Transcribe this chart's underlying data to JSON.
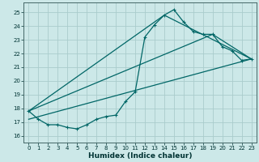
{
  "title": "",
  "xlabel": "Humidex (Indice chaleur)",
  "ylabel": "",
  "background_color": "#cce8e8",
  "grid_color": "#aacccc",
  "line_color": "#006666",
  "xlim": [
    -0.5,
    23.5
  ],
  "ylim": [
    15.5,
    25.7
  ],
  "yticks": [
    16,
    17,
    18,
    19,
    20,
    21,
    22,
    23,
    24,
    25
  ],
  "xticks": [
    0,
    1,
    2,
    3,
    4,
    5,
    6,
    7,
    8,
    9,
    10,
    11,
    12,
    13,
    14,
    15,
    16,
    17,
    18,
    19,
    20,
    21,
    22,
    23
  ],
  "series1_x": [
    0,
    1,
    2,
    3,
    4,
    5,
    6,
    7,
    8,
    9,
    10,
    11,
    12,
    13,
    14,
    15,
    16,
    17,
    18,
    19,
    20,
    21,
    22,
    23
  ],
  "series1_y": [
    17.8,
    17.2,
    16.8,
    16.8,
    16.6,
    16.5,
    16.8,
    17.2,
    17.4,
    17.5,
    18.5,
    19.2,
    23.2,
    24.1,
    24.8,
    25.2,
    24.3,
    23.6,
    23.4,
    23.4,
    22.5,
    22.2,
    21.5,
    21.6
  ],
  "series2_x": [
    0,
    14,
    23
  ],
  "series2_y": [
    17.8,
    24.8,
    21.6
  ],
  "series3_x": [
    0,
    19,
    23
  ],
  "series3_y": [
    17.8,
    23.4,
    21.6
  ],
  "series4_x": [
    0,
    23
  ],
  "series4_y": [
    17.2,
    21.6
  ]
}
